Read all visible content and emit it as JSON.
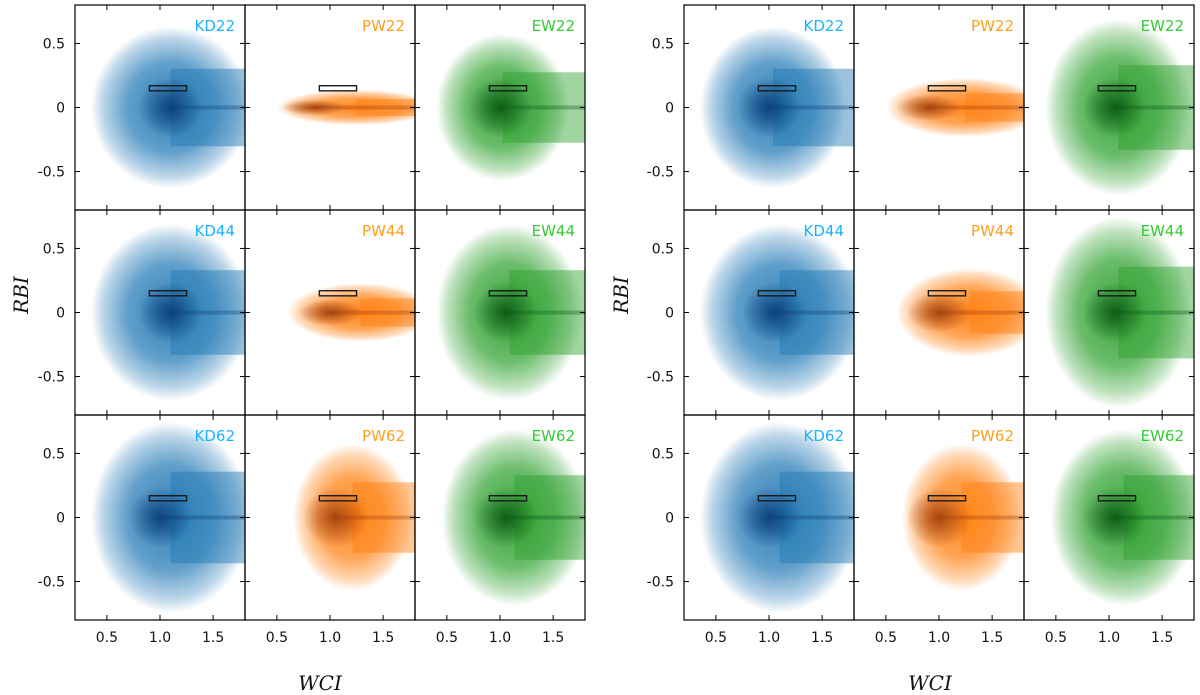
{
  "chart_data": {
    "type": "scatter",
    "description_kind": "density",
    "xlabel": "WCI",
    "ylabel": "RBI",
    "xlim": [
      0.2,
      1.8
    ],
    "ylim": [
      -0.8,
      0.8
    ],
    "xticks": [
      0.5,
      1.0,
      1.5
    ],
    "xtick_labels": [
      "0.5",
      "1.0",
      "1.5"
    ],
    "yticks": [
      0.5,
      0,
      -0.5
    ],
    "ytick_labels": [
      "0.5",
      "0",
      "-0.5"
    ],
    "reference_box": {
      "x": [
        0.9,
        1.25
      ],
      "y": [
        0.13,
        0.17
      ]
    },
    "figures": [
      {
        "panels": [
          {
            "label": "KD22",
            "family": "KD",
            "core": [
              1.1,
              0.0
            ],
            "spread_x": 0.6,
            "spread_y": 0.55,
            "xmin": 0.35
          },
          {
            "label": "PW22",
            "family": "PW",
            "core": [
              0.85,
              0.0
            ],
            "spread_x": 0.6,
            "spread_y": 0.12,
            "xmin": 0.5
          },
          {
            "label": "EW22",
            "family": "EW",
            "core": [
              1.0,
              0.0
            ],
            "spread_x": 0.5,
            "spread_y": 0.5,
            "xmin": 0.4
          },
          {
            "label": "KD44",
            "family": "KD",
            "core": [
              1.1,
              0.0
            ],
            "spread_x": 0.6,
            "spread_y": 0.6,
            "xmin": 0.35
          },
          {
            "label": "PW44",
            "family": "PW",
            "core": [
              1.0,
              0.0
            ],
            "spread_x": 0.55,
            "spread_y": 0.2,
            "xmin": 0.6
          },
          {
            "label": "EW44",
            "family": "EW",
            "core": [
              1.05,
              0.0
            ],
            "spread_x": 0.55,
            "spread_y": 0.6,
            "xmin": 0.4
          },
          {
            "label": "KD62",
            "family": "KD",
            "core": [
              1.0,
              0.0
            ],
            "spread_x": 0.6,
            "spread_y": 0.65,
            "xmin": 0.35
          },
          {
            "label": "PW62",
            "family": "PW",
            "core": [
              1.05,
              0.0
            ],
            "spread_x": 0.45,
            "spread_y": 0.5,
            "xmin": 0.65
          },
          {
            "label": "EW62",
            "family": "EW",
            "core": [
              1.05,
              0.0
            ],
            "spread_x": 0.55,
            "spread_y": 0.6,
            "xmin": 0.45
          }
        ]
      },
      {
        "panels": [
          {
            "label": "KD22",
            "family": "KD",
            "core": [
              1.0,
              0.0
            ],
            "spread_x": 0.55,
            "spread_y": 0.55,
            "xmin": 0.35
          },
          {
            "label": "PW22",
            "family": "PW",
            "core": [
              0.9,
              0.0
            ],
            "spread_x": 0.6,
            "spread_y": 0.2,
            "xmin": 0.5
          },
          {
            "label": "EW22",
            "family": "EW",
            "core": [
              1.05,
              0.0
            ],
            "spread_x": 0.55,
            "spread_y": 0.6,
            "xmin": 0.4
          },
          {
            "label": "KD44",
            "family": "KD",
            "core": [
              1.05,
              0.0
            ],
            "spread_x": 0.6,
            "spread_y": 0.6,
            "xmin": 0.35
          },
          {
            "label": "PW44",
            "family": "PW",
            "core": [
              1.0,
              0.0
            ],
            "spread_x": 0.55,
            "spread_y": 0.3,
            "xmin": 0.6
          },
          {
            "label": "EW44",
            "family": "EW",
            "core": [
              1.05,
              0.0
            ],
            "spread_x": 0.55,
            "spread_y": 0.65,
            "xmin": 0.4
          },
          {
            "label": "KD62",
            "family": "KD",
            "core": [
              1.0,
              0.0
            ],
            "spread_x": 0.6,
            "spread_y": 0.65,
            "xmin": 0.35
          },
          {
            "label": "PW62",
            "family": "PW",
            "core": [
              1.0,
              0.0
            ],
            "spread_x": 0.45,
            "spread_y": 0.5,
            "xmin": 0.65
          },
          {
            "label": "EW62",
            "family": "EW",
            "core": [
              1.05,
              0.0
            ],
            "spread_x": 0.55,
            "spread_y": 0.6,
            "xmin": 0.45
          }
        ]
      }
    ],
    "family_colors": {
      "KD": {
        "fill": "#1f77b4",
        "core": "#0d3f7a",
        "label": "#1ab2ff"
      },
      "PW": {
        "fill": "#ff7f0e",
        "core": "#a3400b",
        "label": "#ff9f1c"
      },
      "EW": {
        "fill": "#2ca02c",
        "core": "#0f5a19",
        "label": "#33cc33"
      }
    }
  }
}
